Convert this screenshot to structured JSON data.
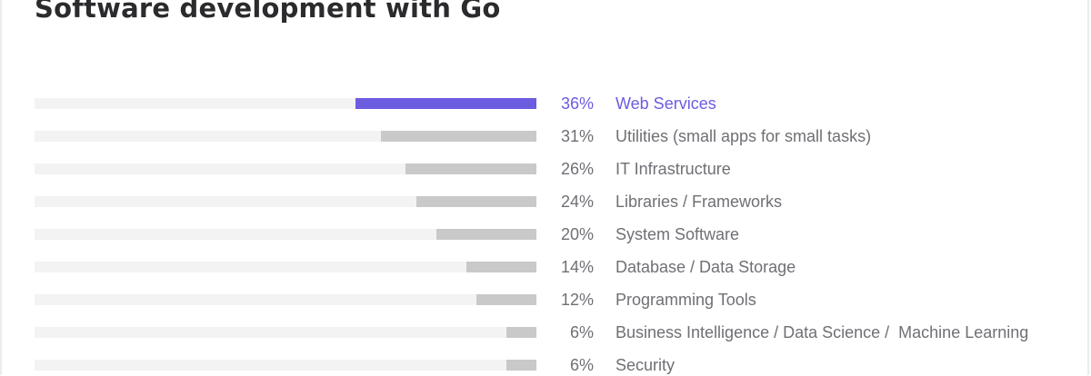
{
  "chart_data": {
    "type": "bar",
    "orientation": "horizontal",
    "title": "Software development with Go",
    "xlim": [
      0,
      100
    ],
    "value_suffix": "%",
    "categories": [
      "Web Services",
      "Utilities (small apps for small tasks)",
      "IT Infrastructure",
      "Libraries / Frameworks",
      "System Software",
      "Database / Data Storage",
      "Programming Tools",
      "Business Intelligence / Data Science /  Machine Learning",
      "Security"
    ],
    "values": [
      36,
      31,
      26,
      24,
      20,
      14,
      12,
      6,
      6
    ],
    "labels": [
      "36%",
      "31%",
      "26%",
      "24%",
      "20%",
      "14%",
      "12%",
      "6%",
      "6%"
    ],
    "highlight_index": 0,
    "colors": {
      "highlight": "#6b5ce0",
      "bar": "#c9c9c9",
      "track": "#f3f3f3",
      "text": "#6f6f75",
      "title": "#2b2b2e"
    }
  }
}
